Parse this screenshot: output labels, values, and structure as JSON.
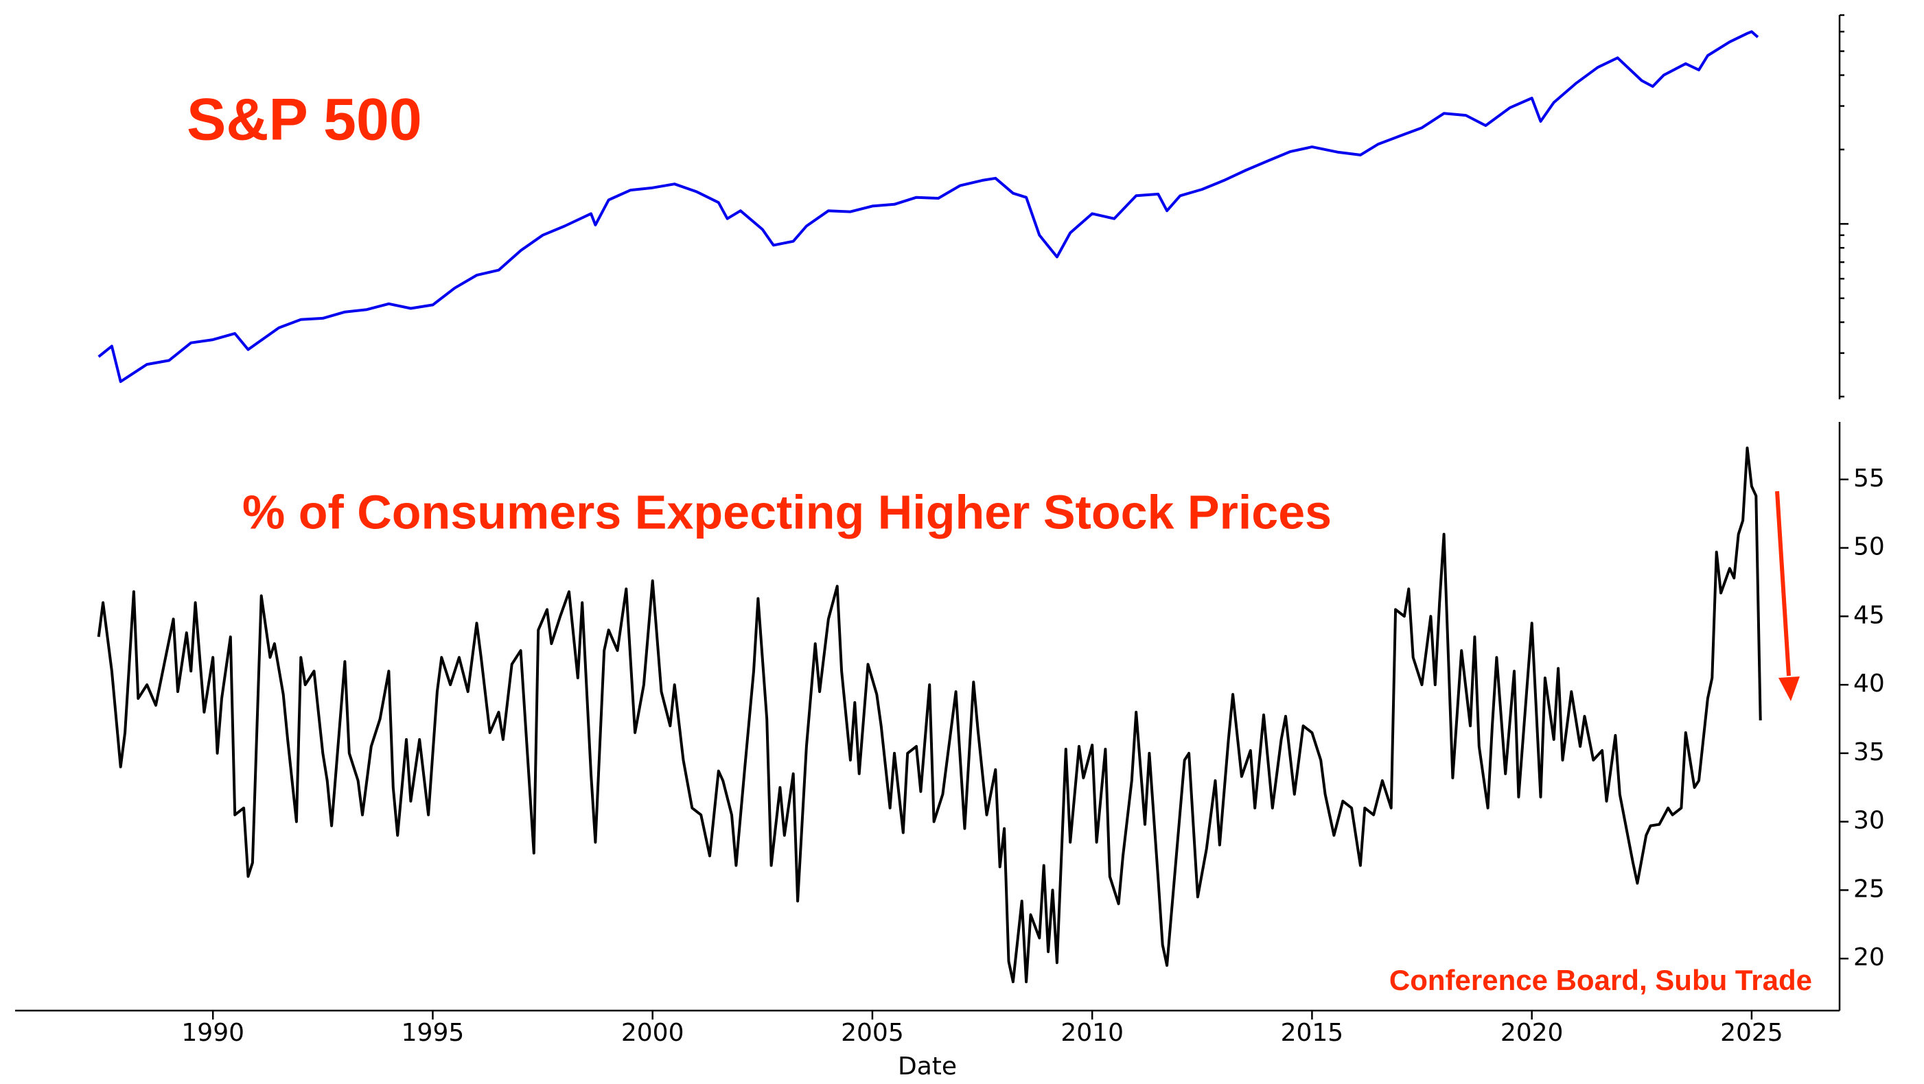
{
  "chart_data": [
    {
      "type": "line",
      "title": "S&P 500",
      "color": "#0000ee",
      "log_scale": true,
      "xlim": [
        1985.5,
        2027
      ],
      "ylim": [
        195,
        7000
      ],
      "yticks": [
        1000
      ],
      "ytick_labels": false,
      "minor_yticks": [
        200,
        300,
        400,
        500,
        600,
        700,
        800,
        900,
        2000,
        3000,
        4000,
        5000,
        6000,
        7000
      ],
      "x": [
        1987.4,
        1987.7,
        1987.9,
        1988.5,
        1989.0,
        1989.5,
        1990.0,
        1990.5,
        1990.8,
        1991.5,
        1992.0,
        1992.5,
        1993.0,
        1993.5,
        1994.0,
        1994.5,
        1995.0,
        1995.5,
        1996.0,
        1996.5,
        1997.0,
        1997.5,
        1998.0,
        1998.6,
        1998.7,
        1999.0,
        1999.5,
        2000.0,
        2000.5,
        2001.0,
        2001.5,
        2001.7,
        2002.0,
        2002.5,
        2002.75,
        2003.2,
        2003.5,
        2004.0,
        2004.5,
        2005.0,
        2005.5,
        2006.0,
        2006.5,
        2007.0,
        2007.5,
        2007.8,
        2008.2,
        2008.5,
        2008.8,
        2009.2,
        2009.5,
        2010.0,
        2010.5,
        2011.0,
        2011.5,
        2011.7,
        2012.0,
        2012.5,
        2013.0,
        2013.5,
        2014.0,
        2014.5,
        2015.0,
        2015.6,
        2016.1,
        2016.5,
        2017.0,
        2017.5,
        2018.0,
        2018.5,
        2018.95,
        2019.5,
        2020.0,
        2020.2,
        2020.5,
        2021.0,
        2021.5,
        2021.95,
        2022.5,
        2022.75,
        2023.0,
        2023.5,
        2023.8,
        2024.0,
        2024.5,
        2024.9,
        2025.0,
        2025.14
      ],
      "values": [
        290,
        320,
        230,
        270,
        280,
        330,
        340,
        360,
        310,
        380,
        410,
        415,
        440,
        450,
        475,
        455,
        470,
        550,
        620,
        650,
        780,
        900,
        980,
        1100,
        990,
        1250,
        1370,
        1400,
        1450,
        1350,
        1220,
        1050,
        1130,
        950,
        820,
        850,
        980,
        1130,
        1120,
        1180,
        1200,
        1280,
        1270,
        1430,
        1500,
        1530,
        1330,
        1280,
        900,
        735,
        920,
        1100,
        1050,
        1300,
        1320,
        1130,
        1300,
        1380,
        1500,
        1650,
        1800,
        1960,
        2050,
        1950,
        1900,
        2100,
        2270,
        2450,
        2800,
        2750,
        2500,
        2950,
        3230,
        2600,
        3100,
        3700,
        4300,
        4700,
        3800,
        3600,
        4000,
        4450,
        4200,
        4800,
        5450,
        5900,
        6000,
        5700
      ]
    },
    {
      "type": "line",
      "title": "% of Consumers Expecting Higher Stock Prices",
      "xlabel": "Date",
      "annotation": "Conference Board, Subu Trade",
      "color": "#000000",
      "xlim": [
        1985.5,
        2027
      ],
      "ylim": [
        16.2,
        59.2
      ],
      "xticks": [
        1990,
        1995,
        2000,
        2005,
        2010,
        2015,
        2020,
        2025
      ],
      "yticks": [
        20,
        25,
        30,
        35,
        40,
        45,
        50,
        55
      ],
      "x": [
        1987.4,
        1987.5,
        1987.7,
        1987.9,
        1988.0,
        1988.2,
        1988.3,
        1988.5,
        1988.7,
        1989.1,
        1989.2,
        1989.4,
        1989.5,
        1989.6,
        1989.8,
        1990.0,
        1990.1,
        1990.2,
        1990.4,
        1990.5,
        1990.7,
        1990.8,
        1990.9,
        1991.1,
        1991.3,
        1991.4,
        1991.6,
        1991.7,
        1991.9,
        1992.0,
        1992.1,
        1992.3,
        1992.5,
        1992.6,
        1992.7,
        1993.0,
        1993.1,
        1993.3,
        1993.4,
        1993.6,
        1993.8,
        1994.0,
        1994.1,
        1994.2,
        1994.4,
        1994.5,
        1994.7,
        1994.9,
        1995.1,
        1995.2,
        1995.4,
        1995.6,
        1995.8,
        1996.0,
        1996.1,
        1996.3,
        1996.5,
        1996.6,
        1996.8,
        1997.0,
        1997.3,
        1997.4,
        1997.6,
        1997.7,
        1997.9,
        1998.1,
        1998.3,
        1998.4,
        1998.6,
        1998.7,
        1998.9,
        1999.0,
        1999.2,
        1999.4,
        1999.6,
        1999.8,
        2000.0,
        2000.2,
        2000.4,
        2000.5,
        2000.7,
        2000.9,
        2001.1,
        2001.3,
        2001.5,
        2001.6,
        2001.8,
        2001.9,
        2002.1,
        2002.3,
        2002.4,
        2002.6,
        2002.7,
        2002.9,
        2003.0,
        2003.2,
        2003.3,
        2003.5,
        2003.7,
        2003.8,
        2004.0,
        2004.2,
        2004.3,
        2004.5,
        2004.6,
        2004.7,
        2004.9,
        2005.1,
        2005.2,
        2005.4,
        2005.5,
        2005.7,
        2005.8,
        2006.0,
        2006.1,
        2006.3,
        2006.4,
        2006.6,
        2006.8,
        2006.9,
        2007.1,
        2007.3,
        2007.4,
        2007.6,
        2007.8,
        2007.9,
        2008.0,
        2008.1,
        2008.2,
        2008.4,
        2008.5,
        2008.6,
        2008.8,
        2008.9,
        2009.0,
        2009.1,
        2009.2,
        2009.4,
        2009.5,
        2009.7,
        2009.8,
        2010.0,
        2010.1,
        2010.3,
        2010.4,
        2010.6,
        2010.7,
        2010.9,
        2011.0,
        2011.2,
        2011.3,
        2011.5,
        2011.6,
        2011.7,
        2011.9,
        2012.1,
        2012.2,
        2012.4,
        2012.6,
        2012.8,
        2012.9,
        2013.1,
        2013.2,
        2013.4,
        2013.6,
        2013.7,
        2013.9,
        2014.1,
        2014.3,
        2014.4,
        2014.6,
        2014.8,
        2015.0,
        2015.2,
        2015.3,
        2015.5,
        2015.7,
        2015.9,
        2016.1,
        2016.2,
        2016.4,
        2016.6,
        2016.8,
        2016.9,
        2017.1,
        2017.2,
        2017.3,
        2017.5,
        2017.7,
        2017.8,
        2017.9,
        2018.0,
        2018.2,
        2018.4,
        2018.6,
        2018.7,
        2018.8,
        2019.0,
        2019.1,
        2019.2,
        2019.4,
        2019.6,
        2019.7,
        2019.9,
        2020.0,
        2020.2,
        2020.3,
        2020.5,
        2020.6,
        2020.7,
        2020.9,
        2021.1,
        2021.2,
        2021.4,
        2021.6,
        2021.7,
        2021.9,
        2022.0,
        2022.3,
        2022.4,
        2022.6,
        2022.7,
        2022.9,
        2023.1,
        2023.2,
        2023.4,
        2023.5,
        2023.7,
        2023.8,
        2024.0,
        2024.1,
        2024.2,
        2024.3,
        2024.5,
        2024.6,
        2024.7,
        2024.8,
        2024.9,
        2025.0,
        2025.1,
        2025.2
      ],
      "values": [
        43.5,
        46,
        41,
        34,
        36.5,
        46.8,
        39,
        40,
        38.5,
        44.8,
        39.5,
        43.8,
        41,
        46,
        38,
        42,
        35,
        39,
        43.5,
        30.5,
        31,
        26,
        27,
        46.5,
        42,
        43,
        39.3,
        36,
        30,
        42,
        40,
        41,
        35,
        33,
        29.7,
        41.7,
        35,
        33,
        30.5,
        35.5,
        37.5,
        41,
        32.5,
        29,
        36,
        31.5,
        36,
        30.5,
        39.5,
        42,
        40,
        42,
        39.5,
        44.5,
        42,
        36.5,
        38,
        36,
        41.5,
        42.5,
        27.7,
        44,
        45.5,
        43,
        45,
        46.8,
        40.5,
        46,
        33.5,
        28.5,
        42.5,
        44,
        42.5,
        47,
        36.5,
        40,
        47.6,
        39.5,
        37,
        40,
        34.5,
        31,
        30.5,
        27.5,
        33.7,
        33,
        30.5,
        26.8,
        34,
        41,
        46.3,
        37.5,
        26.8,
        32.5,
        29,
        33.5,
        24.2,
        35.5,
        43,
        39.5,
        44.8,
        47.2,
        41,
        34.5,
        38.7,
        33.5,
        41.5,
        39.3,
        37,
        31,
        35,
        29.2,
        35,
        35.5,
        32.2,
        40,
        30,
        32,
        37,
        39.5,
        29.5,
        40.2,
        36.7,
        30.5,
        33.8,
        26.7,
        29.5,
        19.8,
        18.3,
        24.2,
        18.3,
        23.2,
        21.5,
        26.8,
        20.5,
        25,
        19.7,
        35.3,
        28.5,
        35.5,
        33.2,
        35.6,
        28.5,
        35.3,
        26,
        24,
        27.5,
        33,
        38,
        29.8,
        35,
        25.8,
        21,
        19.5,
        27,
        34.5,
        35,
        24.5,
        28,
        33,
        28.3,
        36,
        39.3,
        33.3,
        35.2,
        31,
        37.8,
        31,
        36,
        37.7,
        32,
        37,
        36.5,
        34.5,
        32,
        29,
        31.5,
        31,
        26.8,
        31,
        30.5,
        33,
        31,
        45.5,
        45,
        47,
        42,
        40,
        45,
        40,
        46,
        51,
        33.2,
        42.5,
        37,
        43.5,
        35.5,
        31,
        37,
        42,
        33.5,
        41,
        31.8,
        40.3,
        44.5,
        31.8,
        40.5,
        36,
        41.2,
        34.5,
        39.5,
        35.5,
        37.7,
        34.5,
        35.2,
        31.5,
        36.3,
        32,
        27,
        25.5,
        29,
        29.7,
        29.8,
        31,
        30.5,
        31,
        36.5,
        32.5,
        33,
        39,
        40.5,
        49.7,
        46.7,
        48.5,
        47.8,
        51,
        52,
        57.3,
        54.5,
        53.8,
        37.4
      ]
    }
  ]
}
